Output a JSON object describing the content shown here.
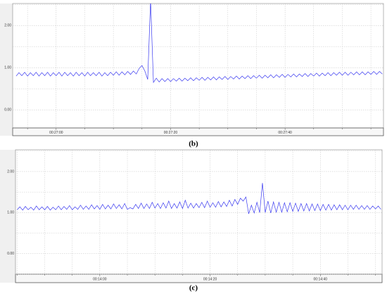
{
  "chart_data": [
    {
      "type": "line",
      "label": "(b)",
      "color": "#3a3af0",
      "grid": true,
      "xlim": [
        1612.4,
        1677.2
      ],
      "ylim": [
        -0.43,
        2.52
      ],
      "xticks": [
        {
          "value": 1620,
          "label": "00:27:00"
        },
        {
          "value": 1640,
          "label": "00:27:20"
        },
        {
          "value": 1660,
          "label": "00:27:40"
        }
      ],
      "yticks": [
        {
          "value": 0,
          "label": "0.00"
        },
        {
          "value": 1,
          "label": "1.00"
        },
        {
          "value": 2,
          "label": "2.00"
        }
      ],
      "x": [
        1613,
        1613.5,
        1614,
        1614.5,
        1615,
        1615.5,
        1616,
        1616.5,
        1617,
        1617.5,
        1618,
        1618.5,
        1619,
        1619.5,
        1620,
        1620.5,
        1621,
        1621.5,
        1622,
        1622.5,
        1623,
        1623.5,
        1624,
        1624.5,
        1625,
        1625.5,
        1626,
        1626.5,
        1627,
        1627.5,
        1628,
        1628.5,
        1629,
        1629.5,
        1630,
        1630.5,
        1631,
        1631.5,
        1632,
        1632.5,
        1633,
        1633.5,
        1634,
        1634.5,
        1635,
        1635.5,
        1636,
        1636.5,
        1637,
        1637.5,
        1638,
        1638.5,
        1639,
        1639.5,
        1640,
        1640.5,
        1641,
        1641.5,
        1642,
        1642.5,
        1643,
        1643.5,
        1644,
        1644.5,
        1645,
        1645.5,
        1646,
        1646.5,
        1647,
        1647.5,
        1648,
        1648.5,
        1649,
        1649.5,
        1650,
        1650.5,
        1651,
        1651.5,
        1652,
        1652.5,
        1653,
        1653.5,
        1654,
        1654.5,
        1655,
        1655.5,
        1656,
        1656.5,
        1657,
        1657.5,
        1658,
        1658.5,
        1659,
        1659.5,
        1660,
        1660.5,
        1661,
        1661.5,
        1662,
        1662.5,
        1663,
        1663.5,
        1664,
        1664.5,
        1665,
        1665.5,
        1666,
        1666.5,
        1667,
        1667.5,
        1668,
        1668.5,
        1669,
        1669.5,
        1670,
        1670.5,
        1671,
        1671.5,
        1672,
        1672.5,
        1673,
        1673.5,
        1674,
        1674.5,
        1675,
        1675.5,
        1676,
        1676.5,
        1677
      ],
      "values": [
        0.8,
        0.88,
        0.81,
        0.89,
        0.8,
        0.88,
        0.81,
        0.89,
        0.8,
        0.88,
        0.81,
        0.89,
        0.8,
        0.88,
        0.81,
        0.89,
        0.8,
        0.89,
        0.81,
        0.88,
        0.8,
        0.89,
        0.81,
        0.88,
        0.8,
        0.89,
        0.81,
        0.88,
        0.81,
        0.89,
        0.8,
        0.88,
        0.81,
        0.89,
        0.82,
        0.9,
        0.82,
        0.9,
        0.83,
        0.91,
        0.84,
        0.92,
        0.85,
        0.98,
        1.05,
        0.92,
        0.72,
        2.6,
        0.65,
        0.75,
        0.66,
        0.74,
        0.67,
        0.74,
        0.67,
        0.74,
        0.68,
        0.75,
        0.68,
        0.75,
        0.69,
        0.76,
        0.69,
        0.76,
        0.7,
        0.77,
        0.7,
        0.77,
        0.71,
        0.78,
        0.71,
        0.78,
        0.72,
        0.79,
        0.72,
        0.79,
        0.73,
        0.8,
        0.73,
        0.8,
        0.74,
        0.81,
        0.74,
        0.81,
        0.75,
        0.82,
        0.75,
        0.82,
        0.76,
        0.83,
        0.76,
        0.83,
        0.77,
        0.84,
        0.77,
        0.84,
        0.78,
        0.85,
        0.78,
        0.85,
        0.79,
        0.86,
        0.79,
        0.86,
        0.8,
        0.87,
        0.8,
        0.87,
        0.81,
        0.88,
        0.81,
        0.88,
        0.82,
        0.89,
        0.82,
        0.89,
        0.82,
        0.89,
        0.83,
        0.9,
        0.83,
        0.9,
        0.83,
        0.9,
        0.84,
        0.91,
        0.84,
        0.91,
        0.85
      ]
    },
    {
      "type": "line",
      "label": "(c)",
      "color": "#3a3af0",
      "grid": true,
      "xlim": [
        824.7,
        891.2
      ],
      "ylim": [
        -0.5,
        2.53
      ],
      "xticks": [
        {
          "value": 840,
          "label": "00:14:00"
        },
        {
          "value": 860,
          "label": "00:14:20"
        },
        {
          "value": 880,
          "label": "00:14:40"
        }
      ],
      "yticks": [
        {
          "value": 0,
          "label": "0.00"
        },
        {
          "value": 1,
          "label": "1.00"
        },
        {
          "value": 2,
          "label": "2.00"
        }
      ],
      "x": [
        825,
        825.5,
        826,
        826.5,
        827,
        827.5,
        828,
        828.5,
        829,
        829.5,
        830,
        830.5,
        831,
        831.5,
        832,
        832.5,
        833,
        833.5,
        834,
        834.5,
        835,
        835.5,
        836,
        836.5,
        837,
        837.5,
        838,
        838.5,
        839,
        839.5,
        840,
        840.5,
        841,
        841.5,
        842,
        842.5,
        843,
        843.5,
        844,
        844.5,
        845,
        845.5,
        846,
        846.5,
        847,
        847.5,
        848,
        848.5,
        849,
        849.5,
        850,
        850.5,
        851,
        851.5,
        852,
        852.5,
        853,
        853.5,
        854,
        854.5,
        855,
        855.5,
        856,
        856.5,
        857,
        857.5,
        858,
        858.5,
        859,
        859.5,
        860,
        860.5,
        861,
        861.5,
        862,
        862.5,
        863,
        863.5,
        864,
        864.5,
        865,
        865.5,
        866,
        866.5,
        867,
        867.5,
        868,
        868.5,
        869,
        869.5,
        870,
        870.5,
        871,
        871.5,
        872,
        872.5,
        873,
        873.5,
        874,
        874.5,
        875,
        875.5,
        876,
        876.5,
        877,
        877.5,
        878,
        878.5,
        879,
        879.5,
        880,
        880.5,
        881,
        881.5,
        882,
        882.5,
        883,
        883.5,
        884,
        884.5,
        885,
        885.5,
        886,
        886.5,
        887,
        887.5,
        888,
        888.5,
        889,
        889.5,
        890,
        890.5,
        891
      ],
      "values": [
        1.07,
        1.14,
        1.06,
        1.15,
        1.07,
        1.13,
        1.06,
        1.16,
        1.07,
        1.14,
        1.07,
        1.15,
        1.06,
        1.13,
        1.07,
        1.16,
        1.07,
        1.15,
        1.08,
        1.17,
        1.07,
        1.14,
        1.08,
        1.18,
        1.08,
        1.16,
        1.08,
        1.19,
        1.09,
        1.17,
        1.08,
        1.2,
        1.09,
        1.18,
        1.09,
        1.21,
        1.1,
        1.19,
        1.09,
        1.22,
        1.08,
        1.12,
        1.09,
        1.2,
        1.1,
        1.23,
        1.1,
        1.21,
        1.1,
        1.25,
        1.11,
        1.22,
        1.1,
        1.24,
        1.11,
        1.28,
        1.1,
        1.22,
        1.11,
        1.26,
        1.1,
        1.3,
        1.11,
        1.23,
        1.11,
        1.22,
        1.12,
        1.25,
        1.12,
        1.28,
        1.13,
        1.24,
        1.13,
        1.27,
        1.14,
        1.26,
        1.15,
        1.3,
        1.16,
        1.32,
        1.2,
        1.35,
        1.28,
        1.38,
        0.97,
        1.18,
        0.99,
        1.25,
        1.0,
        1.72,
        1.0,
        1.28,
        0.99,
        1.26,
        1.01,
        1.25,
        1.01,
        1.24,
        1.02,
        1.24,
        1.03,
        1.23,
        1.03,
        1.22,
        1.04,
        1.22,
        1.04,
        1.21,
        1.05,
        1.21,
        1.05,
        1.2,
        1.06,
        1.2,
        1.06,
        1.19,
        1.07,
        1.19,
        1.07,
        1.18,
        1.07,
        1.18,
        1.08,
        1.18,
        1.08,
        1.17,
        1.08,
        1.17,
        1.08,
        1.16,
        1.09,
        1.16,
        1.08
      ]
    }
  ]
}
